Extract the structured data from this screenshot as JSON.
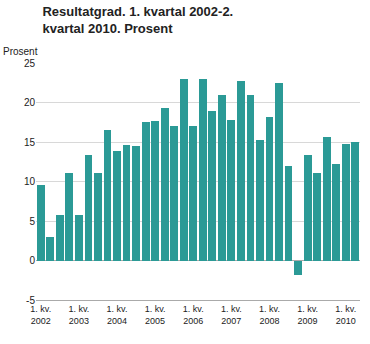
{
  "chart_data": {
    "type": "bar",
    "title": "Resultatgrad. 1. kvartal 2002-2. kvartal 2010. Prosent",
    "ylabel": "Prosent",
    "categories": [
      "1. kv.\n2002",
      null,
      null,
      null,
      "1. kv.\n2003",
      null,
      null,
      null,
      "1. kv.\n2004",
      null,
      null,
      null,
      "1. kv.\n2005",
      null,
      null,
      null,
      "1. kv.\n2006",
      null,
      null,
      null,
      "1. kv.\n2007",
      null,
      null,
      null,
      "1. kv.\n2008",
      null,
      null,
      null,
      "1. kv.\n2009",
      null,
      null,
      null,
      "1. kv.\n2010",
      null
    ],
    "values": [
      9.5,
      3.0,
      5.7,
      11.1,
      5.8,
      13.3,
      11.1,
      16.5,
      13.8,
      14.6,
      14.5,
      17.5,
      17.7,
      19.3,
      17.0,
      23.0,
      17.0,
      23.0,
      18.9,
      21.0,
      17.8,
      22.7,
      20.9,
      15.2,
      18.2,
      22.5,
      12.0,
      -1.8,
      13.4,
      11.1,
      15.6,
      12.2,
      14.8,
      15.0
    ],
    "color": "#2b9a96",
    "ylim": [
      -5,
      25
    ],
    "yticks": [
      -5,
      0,
      5,
      10,
      15,
      20,
      25
    ],
    "grid": true
  }
}
